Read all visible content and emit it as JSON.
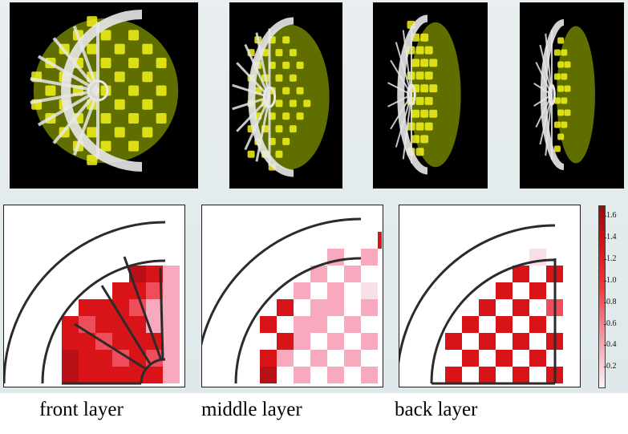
{
  "renders": [
    {
      "name": "render-front-3d"
    },
    {
      "name": "render-oblique-3d"
    },
    {
      "name": "render-side-3d"
    },
    {
      "name": "render-profile-3d"
    }
  ],
  "layers": [
    {
      "caption": "front layer"
    },
    {
      "caption": "middle layer"
    },
    {
      "caption": "back layer"
    }
  ],
  "colorbar": {
    "ticks": [
      "1.6",
      "1.4",
      "1.2",
      "1.0",
      "0.8",
      "0.6",
      "0.4",
      "0.2"
    ],
    "min": 0,
    "max": 1.7
  },
  "colors": {
    "high": "#d81418",
    "mid": "#ef4d5a",
    "low": "#f7a9bd",
    "faint": "#f7e0e7",
    "render_yellow": "#f2f21a",
    "render_green": "#6a7a00",
    "render_white": "#e8e8e8"
  }
}
